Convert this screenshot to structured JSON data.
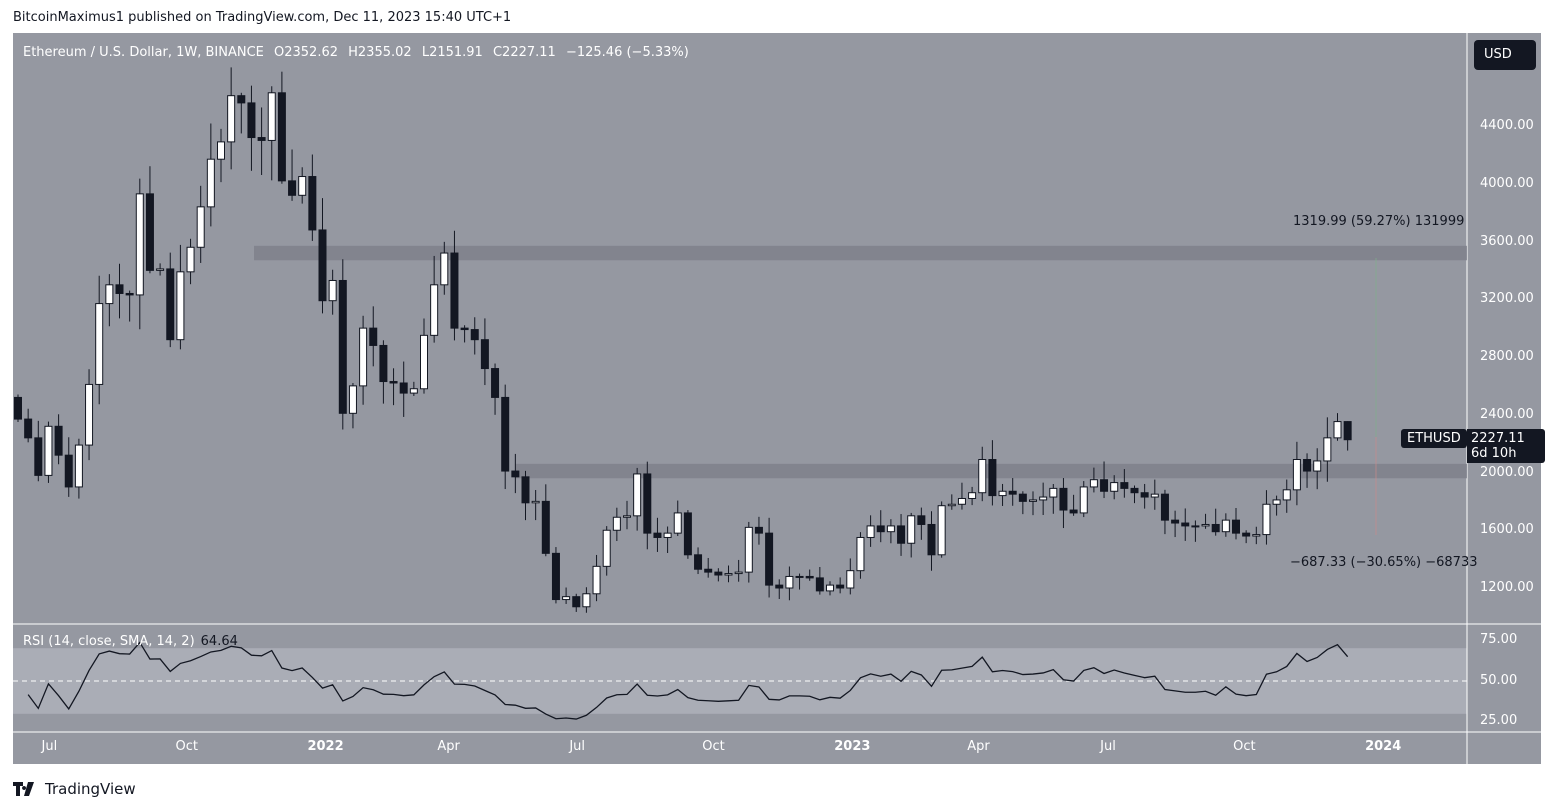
{
  "publisher": "BitcoinMaximus1 published on TradingView.com, Dec 11, 2023 15:40 UTC+1",
  "legend": {
    "symbol": "Ethereum / U.S. Dollar, 1W, BINANCE",
    "open": "O2352.62",
    "high": "H2355.02",
    "low": "L2151.91",
    "close": "C2227.11",
    "change": "−125.46 (−5.33%)"
  },
  "currency_button": "USD",
  "ticker": "ETHUSD",
  "last_price": "2227.11",
  "countdown": "6d 10h",
  "measure_up": "1319.99 (59.27%) 131999",
  "measure_down": "−687.33 (−30.65%) −68733",
  "rsi": {
    "label": "RSI (14, close, SMA, 14, 2)",
    "value": "64.64",
    "ticks": [
      "75.00",
      "50.00",
      "25.00"
    ]
  },
  "brand": "TradingView",
  "colors": {
    "bg": "#9598a1",
    "up": "#ffffff",
    "down": "#131722",
    "zone": "#7d8089"
  },
  "chart_data": {
    "type": "candlestick",
    "title": "Ethereum / U.S. Dollar, 1W, BINANCE",
    "ylim": [
      900,
      4900
    ],
    "yticks": [
      "4400.00",
      "4000.00",
      "3600.00",
      "3200.00",
      "2800.00",
      "2400.00",
      "2000.00",
      "1600.00",
      "1200.00"
    ],
    "xticks": [
      {
        "label": "Jul",
        "bold": false,
        "week": 3.5
      },
      {
        "label": "Oct",
        "bold": false,
        "week": 16.7
      },
      {
        "label": "2022",
        "bold": true,
        "week": 29.7
      },
      {
        "label": "Apr",
        "bold": false,
        "week": 42.5
      },
      {
        "label": "Jul",
        "bold": false,
        "week": 55.5
      },
      {
        "label": "Oct",
        "bold": false,
        "week": 68.6
      },
      {
        "label": "2023",
        "bold": true,
        "week": 81.6
      },
      {
        "label": "Apr",
        "bold": false,
        "week": 94.7
      },
      {
        "label": "Jul",
        "bold": false,
        "week": 107.8
      },
      {
        "label": "Oct",
        "bold": false,
        "week": 120.9
      },
      {
        "label": "2024",
        "bold": true,
        "week": 133.9
      }
    ],
    "first_open": 2520,
    "closes": [
      2370,
      2240,
      1980,
      2320,
      2120,
      1900,
      2190,
      2610,
      3170,
      3300,
      3240,
      3230,
      3930,
      3400,
      3410,
      2920,
      3390,
      3560,
      3840,
      4170,
      4290,
      4610,
      4560,
      4320,
      4300,
      4630,
      4020,
      3920,
      4050,
      3680,
      3190,
      3330,
      2410,
      2600,
      3000,
      2880,
      2630,
      2620,
      2550,
      2580,
      2950,
      3300,
      3520,
      3000,
      2990,
      2920,
      2720,
      2520,
      2010,
      1970,
      1790,
      1800,
      1440,
      1120,
      1140,
      1070,
      1160,
      1350,
      1600,
      1690,
      1700,
      1990,
      1580,
      1550,
      1580,
      1720,
      1430,
      1330,
      1310,
      1290,
      1300,
      1310,
      1620,
      1580,
      1220,
      1200,
      1280,
      1280,
      1270,
      1180,
      1220,
      1200,
      1320,
      1550,
      1630,
      1590,
      1630,
      1510,
      1700,
      1640,
      1430,
      1770,
      1780,
      1820,
      1860,
      2090,
      1840,
      1870,
      1850,
      1800,
      1810,
      1830,
      1890,
      1740,
      1720,
      1900,
      1950,
      1870,
      1930,
      1890,
      1860,
      1830,
      1850,
      1670,
      1650,
      1630,
      1630,
      1640,
      1590,
      1670,
      1580,
      1560,
      1570,
      1780,
      1810,
      1880,
      2090,
      2010,
      2080,
      2240,
      2352.62,
      2227.11
    ],
    "last_candle": {
      "open": 2352.62,
      "high": 2355.02,
      "low": 2151.91,
      "close": 2227.11
    },
    "zones": [
      [
        3470,
        3570
      ],
      [
        1960,
        2060
      ]
    ],
    "rsi_bands": [
      30,
      70
    ]
  }
}
